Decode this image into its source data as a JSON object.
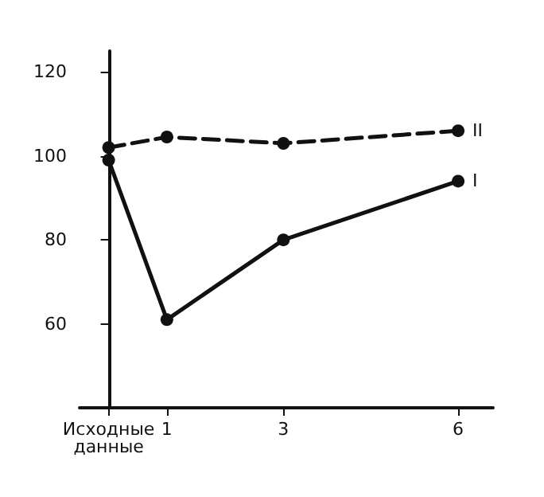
{
  "chart_data": {
    "type": "line",
    "x": [
      0,
      1,
      3,
      6
    ],
    "series": [
      {
        "name": "I",
        "color": "#111111",
        "values": [
          99,
          61,
          80,
          94
        ],
        "line_style": "solid"
      },
      {
        "name": "II",
        "color": "#111111",
        "values": [
          102,
          104.5,
          103,
          106
        ],
        "line_style": "dashed"
      }
    ],
    "xlim": [
      -0.5,
      6.6
    ],
    "xticks": [
      {
        "value": 0,
        "label": "Исходные\nданные"
      },
      1,
      3,
      6
    ],
    "ylim": [
      40,
      125
    ],
    "yticks": [
      60,
      80,
      100,
      120
    ],
    "grid": false,
    "legend": false,
    "marker": "circle"
  }
}
